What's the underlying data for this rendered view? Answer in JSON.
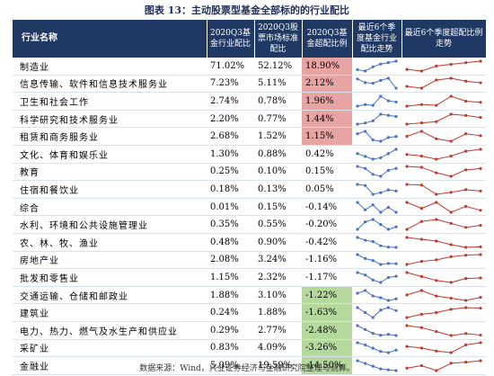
{
  "title": "图表 13：主动股票型基金全部标的的行业配比",
  "table": {
    "header": [
      "行业名称",
      "2020Q3基金行业配比",
      "2020Q3股票市场标准配比",
      "2020Q3基金超配比例",
      "最近6个季度基金行业配比走势",
      "最近6个季度超配比例走势"
    ],
    "trend_color": "#4472c4",
    "over_trend_color": "#c0392b",
    "rows": [
      {
        "cells": [
          "制造业",
          "71.02%",
          "52.12%",
          "18.90%"
        ],
        "highlight": "#e8a3a3",
        "trend": [
          65,
          64,
          67,
          69,
          70,
          71.02
        ],
        "over_trend": [
          14,
          13,
          16,
          17,
          18,
          18.9
        ]
      },
      {
        "cells": [
          "信息传输、软件和信息技术服务业",
          "7.23%",
          "5.11%",
          "2.12%"
        ],
        "highlight": "#e8a3a3",
        "trend": [
          8.5,
          8,
          7.9,
          8.3,
          8.6,
          7.23
        ],
        "over_trend": [
          1.5,
          1.2,
          2.6,
          2.9,
          2.4,
          2.12
        ]
      },
      {
        "cells": [
          "卫生和社会工作",
          "2.74%",
          "0.78%",
          "1.96%"
        ],
        "highlight": "#e8a3a3",
        "trend": [
          2.2,
          2.4,
          2.3,
          3.5,
          2.9,
          2.74
        ],
        "over_trend": [
          1.5,
          1.7,
          1.6,
          2.7,
          2.1,
          1.96
        ]
      },
      {
        "cells": [
          "科学研究和技术服务业",
          "2.20%",
          "0.77%",
          "1.44%"
        ],
        "highlight": "#e8a3a3",
        "trend": [
          1.5,
          1.6,
          1.8,
          2.4,
          2.3,
          2.2
        ],
        "over_trend": [
          0.9,
          1.0,
          1.1,
          1.7,
          1.6,
          1.44
        ]
      },
      {
        "cells": [
          "租赁和商务服务业",
          "2.68%",
          "1.52%",
          "1.15%"
        ],
        "highlight": "#e8a3a3",
        "trend": [
          2.9,
          3.1,
          2.4,
          2.3,
          2.6,
          2.68
        ],
        "over_trend": [
          1.1,
          1.5,
          0.9,
          0.7,
          1.3,
          1.15
        ]
      },
      {
        "cells": [
          "文化、体育和娱乐业",
          "1.30%",
          "0.88%",
          "0.42%"
        ],
        "trend": [
          1.0,
          0.8,
          0.6,
          0.7,
          1.0,
          1.3
        ],
        "over_trend": [
          0.1,
          0.0,
          -0.2,
          0.0,
          0.3,
          0.42
        ]
      },
      {
        "cells": [
          "教育",
          "0.25%",
          "0.10%",
          "0.15%"
        ],
        "trend": [
          0.3,
          0.25,
          0.1,
          0.05,
          0.2,
          0.25
        ],
        "over_trend": [
          0.2,
          0.18,
          0.05,
          -0.03,
          0.12,
          0.15
        ]
      },
      {
        "cells": [
          "住宿和餐饮业",
          "0.18%",
          "0.13%",
          "0.05%"
        ],
        "trend": [
          0.3,
          0.28,
          0.12,
          0.15,
          0.2,
          0.18
        ],
        "over_trend": [
          0.15,
          0.14,
          0.0,
          0.03,
          0.07,
          0.05
        ]
      },
      {
        "cells": [
          "综合",
          "0.01%",
          "0.15%",
          "-0.14%"
        ],
        "trend": [
          0.05,
          0.02,
          0.04,
          0.01,
          0.03,
          0.01
        ],
        "over_trend": [
          -0.1,
          -0.13,
          -0.1,
          -0.15,
          -0.12,
          -0.14
        ]
      },
      {
        "cells": [
          "水利、环境和公共设施管理业",
          "0.35%",
          "0.55%",
          "-0.20%"
        ],
        "trend": [
          0.3,
          0.45,
          0.5,
          0.4,
          0.3,
          0.35
        ],
        "over_trend": [
          -0.3,
          -0.1,
          -0.05,
          -0.15,
          -0.25,
          -0.2
        ]
      },
      {
        "cells": [
          "农、林、牧、渔业",
          "0.48%",
          "0.90%",
          "-0.42%"
        ],
        "trend": [
          1.2,
          1.0,
          0.9,
          0.6,
          0.5,
          0.48
        ],
        "over_trend": [
          0.1,
          0.0,
          -0.1,
          -0.3,
          -0.45,
          -0.42
        ]
      },
      {
        "cells": [
          "房地产业",
          "2.08%",
          "3.24%",
          "-1.16%"
        ],
        "trend": [
          3.0,
          2.6,
          2.4,
          2.0,
          2.1,
          2.08
        ],
        "over_trend": [
          -1.8,
          -1.6,
          -1.5,
          -1.3,
          -1.2,
          -1.16
        ]
      },
      {
        "cells": [
          "批发和零售业",
          "1.15%",
          "2.32%",
          "-1.17%"
        ],
        "trend": [
          1.3,
          1.2,
          1.0,
          0.9,
          1.1,
          1.15
        ],
        "over_trend": [
          -0.9,
          -1.1,
          -1.3,
          -1.4,
          -1.2,
          -1.17
        ]
      },
      {
        "cells": [
          "交通运输、仓储和邮政业",
          "1.88%",
          "3.10%",
          "-1.22%"
        ],
        "highlight": "#b5d99c",
        "trend": [
          2.5,
          2.8,
          2.2,
          2.0,
          1.7,
          1.88
        ],
        "over_trend": [
          -1.0,
          -0.6,
          -1.1,
          -1.3,
          -1.5,
          -1.22
        ]
      },
      {
        "cells": [
          "建筑业",
          "0.24%",
          "1.88%",
          "-1.63%"
        ],
        "highlight": "#b5d99c",
        "trend": [
          0.3,
          0.2,
          0.1,
          0.25,
          0.3,
          0.24
        ],
        "over_trend": [
          -2.2,
          -2.0,
          -1.9,
          -1.7,
          -1.6,
          -1.63
        ]
      },
      {
        "cells": [
          "电力、热力、燃气及水生产和供应业",
          "0.29%",
          "2.77%",
          "-2.48%"
        ],
        "highlight": "#b5d99c",
        "trend": [
          0.8,
          0.6,
          0.4,
          0.3,
          0.35,
          0.29
        ],
        "over_trend": [
          -2.0,
          -2.1,
          -2.3,
          -2.5,
          -2.4,
          -2.48
        ]
      },
      {
        "cells": [
          "采矿业",
          "0.83%",
          "4.09%",
          "-3.26%"
        ],
        "highlight": "#b5d99c",
        "trend": [
          1.5,
          1.3,
          1.0,
          0.7,
          0.6,
          0.83
        ],
        "over_trend": [
          -3.5,
          -3.6,
          -3.8,
          -3.9,
          -3.4,
          -3.26
        ]
      },
      {
        "cells": [
          "金融业",
          "5.09%",
          "19.59%",
          "-14.50%"
        ],
        "highlight": "#b5d99c",
        "trend": [
          10.5,
          9.0,
          7.5,
          6.0,
          5.5,
          5.09
        ],
        "over_trend": [
          -16,
          -15.5,
          -16.5,
          -15,
          -14.8,
          -14.5
        ]
      }
    ]
  },
  "source": "数据来源：Wind，兴业证券经济与金融研究院整理与测算。"
}
